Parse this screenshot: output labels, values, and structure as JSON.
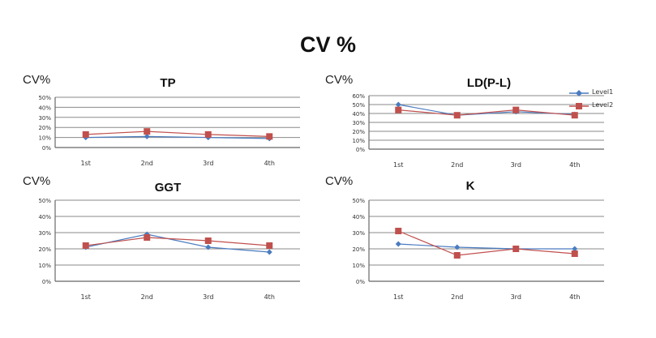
{
  "title": "CV %",
  "legend": [
    {
      "name": "Level1",
      "color": "#4a7bbf",
      "marker": "diamond"
    },
    {
      "name": "Level2",
      "color": "#c0504d",
      "marker": "square"
    }
  ],
  "chart_data": [
    {
      "type": "line",
      "title": "TP",
      "ylabel": "CV%",
      "categories": [
        "1st",
        "2nd",
        "3rd",
        "4th"
      ],
      "ylim": [
        0,
        50
      ],
      "yticks": [
        "0%",
        "10%",
        "20%",
        "30%",
        "40%",
        "50%"
      ],
      "grid": true,
      "series": [
        {
          "name": "Level1",
          "values": [
            10,
            11,
            10,
            9
          ]
        },
        {
          "name": "Level2",
          "values": [
            13,
            16,
            13,
            11
          ]
        }
      ]
    },
    {
      "type": "line",
      "title": "LD(P-L)",
      "ylabel": "CV%",
      "categories": [
        "1st",
        "2nd",
        "3rd",
        "4th"
      ],
      "ylim": [
        0,
        60
      ],
      "yticks": [
        "0%",
        "10%",
        "20%",
        "30%",
        "40%",
        "50%",
        "60%"
      ],
      "grid": true,
      "series": [
        {
          "name": "Level1",
          "values": [
            50,
            38,
            42,
            39
          ]
        },
        {
          "name": "Level2",
          "values": [
            44,
            38,
            44,
            38
          ]
        }
      ]
    },
    {
      "type": "line",
      "title": "GGT",
      "ylabel": "CV%",
      "categories": [
        "1st",
        "2nd",
        "3rd",
        "4th"
      ],
      "ylim": [
        0,
        50
      ],
      "yticks": [
        "0%",
        "10%",
        "20%",
        "30%",
        "40%",
        "50%"
      ],
      "grid": true,
      "series": [
        {
          "name": "Level1",
          "values": [
            21,
            29,
            21,
            18
          ]
        },
        {
          "name": "Level2",
          "values": [
            22,
            27,
            25,
            22
          ]
        }
      ]
    },
    {
      "type": "line",
      "title": "K",
      "ylabel": "CV%",
      "categories": [
        "1st",
        "2nd",
        "3rd",
        "4th"
      ],
      "ylim": [
        0,
        50
      ],
      "yticks": [
        "0%",
        "10%",
        "20%",
        "30%",
        "40%",
        "50%"
      ],
      "grid": true,
      "series": [
        {
          "name": "Level1",
          "values": [
            23,
            21,
            20,
            20
          ]
        },
        {
          "name": "Level2",
          "values": [
            31,
            16,
            20,
            17
          ]
        }
      ]
    }
  ]
}
